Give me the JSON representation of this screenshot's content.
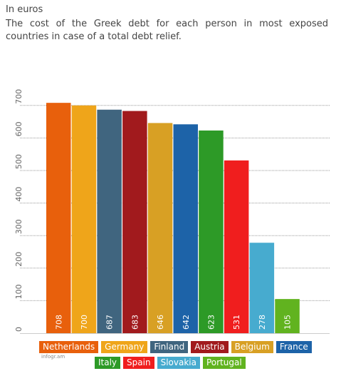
{
  "header": {
    "unit": "In euros",
    "title": "The cost of the Greek debt for each person in most exposed countries in case of a total debt relief."
  },
  "credit": "infogr.am",
  "chart_data": {
    "type": "bar",
    "title": "The cost of the Greek debt for each person in most exposed countries in case of a total debt relief.",
    "ylabel": "In euros",
    "xlabel": "",
    "ylim": [
      0,
      750
    ],
    "yticks": [
      0,
      100,
      200,
      300,
      400,
      500,
      600,
      700
    ],
    "grid": true,
    "legend_position": "bottom",
    "categories": [
      "Netherlands",
      "Germany",
      "Finland",
      "Austria",
      "Belgium",
      "France",
      "Italy",
      "Spain",
      "Slovakia",
      "Portugal"
    ],
    "values": [
      708,
      700,
      687,
      683,
      646,
      642,
      623,
      531,
      278,
      105
    ],
    "colors": [
      "#E8600C",
      "#EFA51A",
      "#40657F",
      "#A11A1D",
      "#D8A024",
      "#1D63A8",
      "#2D9A27",
      "#F01E1E",
      "#47ABCF",
      "#61B31F"
    ]
  }
}
